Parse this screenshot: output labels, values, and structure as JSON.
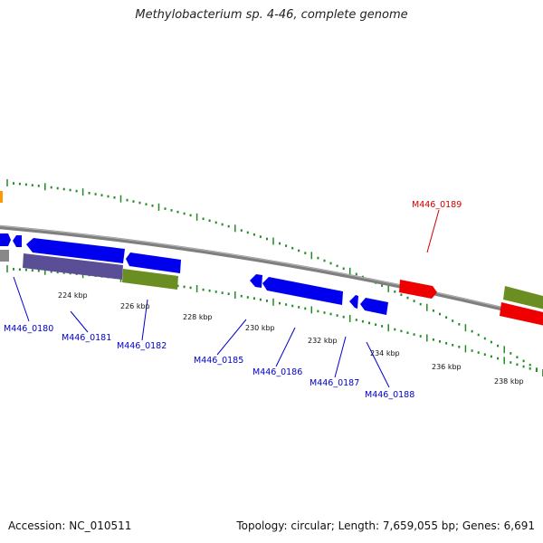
{
  "header": {
    "title": "Methylobacterium sp. 4-46, complete genome"
  },
  "footer": {
    "accession": "Accession: NC_010511",
    "summary": "Topology: circular; Length: 7,659,055 bp; Genes: 6,691"
  },
  "colors": {
    "backbone": "#808080",
    "forward_gene": "#0000ee",
    "reverse_gene": "#ee0000",
    "gene_label_blue": "#0000cc",
    "gene_label_red": "#cc0000",
    "purple_block": "#5a4f96",
    "olive_block": "#6b8e23",
    "orange_block": "#ff9900",
    "tick_green": "#228b22"
  },
  "kbp_labels": [
    "224 kbp",
    "226 kbp",
    "228 kbp",
    "230 kbp",
    "232 kbp",
    "234 kbp",
    "236 kbp",
    "238 kbp"
  ],
  "gene_labels": {
    "g0180": "M446_0180",
    "g0181": "M446_0181",
    "g0182": "M446_0182",
    "g0185": "M446_0185",
    "g0186": "M446_0186",
    "g0187": "M446_0187",
    "g0188": "M446_0188",
    "g0189": "M446_0189"
  }
}
